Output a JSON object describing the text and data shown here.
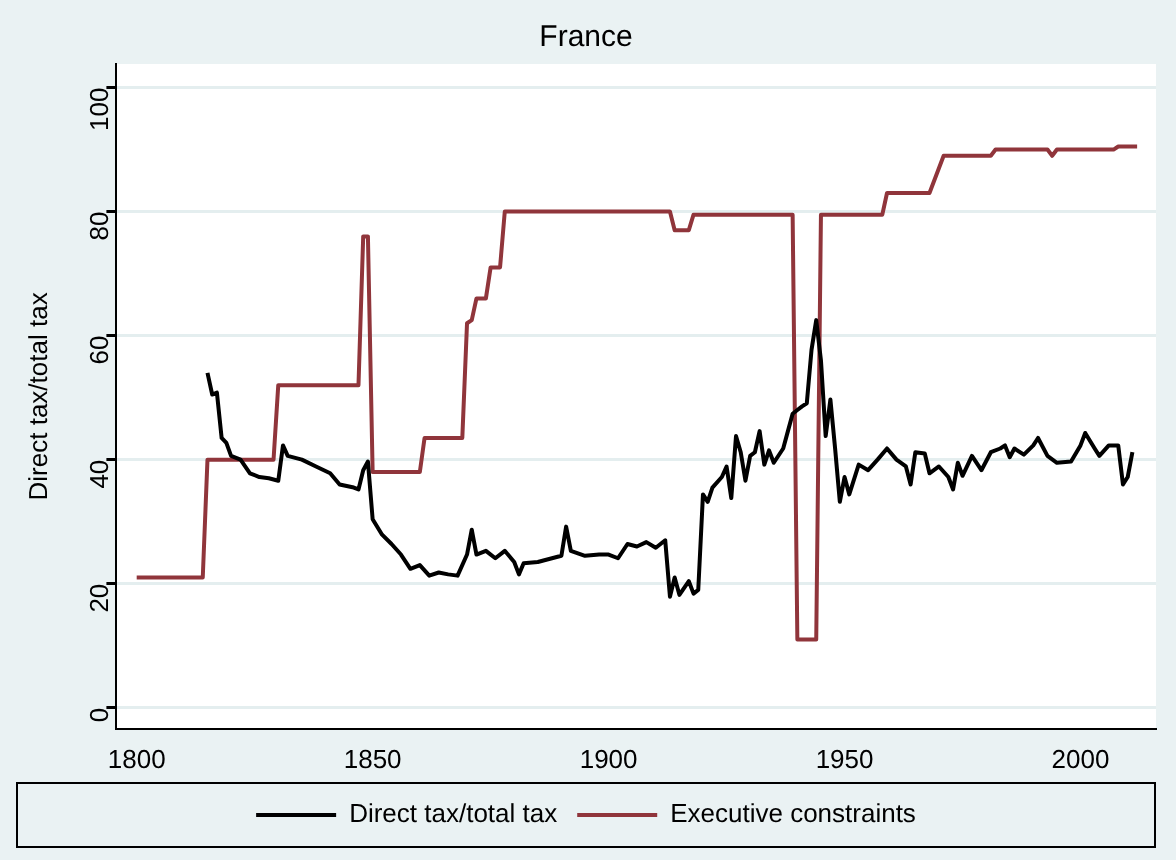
{
  "chart_data": {
    "type": "line",
    "title": "France",
    "ylabel": "Direct tax/total tax",
    "xlim": [
      1795.7,
      2016
    ],
    "xticks": [
      1800,
      1850,
      1900,
      1950,
      2000
    ],
    "ylim": [
      -3.4,
      103.8
    ],
    "yticks": [
      0,
      20,
      40,
      60,
      80,
      100
    ],
    "grid": "y",
    "legend": "bottom",
    "marker": "none",
    "line_style": "solid",
    "series": [
      {
        "name": "Direct tax/total tax",
        "color": "#000000",
        "x": [
          1815,
          1816,
          1817,
          1818,
          1819,
          1820,
          1822,
          1824,
          1826,
          1828,
          1830,
          1831,
          1832,
          1835,
          1838,
          1841,
          1843,
          1846,
          1847,
          1848,
          1849,
          1850,
          1852,
          1854,
          1856,
          1858,
          1860,
          1862,
          1864,
          1866,
          1868,
          1870,
          1871,
          1872,
          1874,
          1876,
          1878,
          1880,
          1881,
          1882,
          1885,
          1888,
          1890,
          1891,
          1892,
          1895,
          1898,
          1900,
          1902,
          1904,
          1906,
          1908,
          1910,
          1912,
          1913,
          1914,
          1915,
          1917,
          1918,
          1919,
          1920,
          1921,
          1922,
          1924,
          1925,
          1926,
          1927,
          1928,
          1929,
          1930,
          1931,
          1932,
          1933,
          1934,
          1935,
          1937,
          1938,
          1939,
          1940,
          1941,
          1942,
          1943,
          1944,
          1945,
          1946,
          1947,
          1948,
          1949,
          1950,
          1951,
          1953,
          1955,
          1957,
          1959,
          1961,
          1963,
          1964,
          1965,
          1967,
          1968,
          1970,
          1972,
          1973,
          1974,
          1975,
          1977,
          1979,
          1981,
          1983,
          1984,
          1985,
          1986,
          1988,
          1990,
          1991,
          1993,
          1995,
          1998,
          2000,
          2001,
          2003,
          2004,
          2006,
          2008,
          2009,
          2010,
          2011
        ],
        "values": [
          54,
          50.5,
          50.8,
          43.5,
          42.7,
          40.6,
          40,
          37.8,
          37.2,
          37,
          36.6,
          42.3,
          40.6,
          40,
          38.9,
          37.8,
          36,
          35.5,
          35.2,
          38.3,
          39.7,
          30.4,
          27.9,
          26.4,
          24.7,
          22.4,
          23,
          21.3,
          21.8,
          21.5,
          21.3,
          24.7,
          28.7,
          24.7,
          25.3,
          24.1,
          25.3,
          23.5,
          21.5,
          23.3,
          23.5,
          24.1,
          24.5,
          29.2,
          25.3,
          24.5,
          24.7,
          24.7,
          24.1,
          26.4,
          26,
          26.7,
          25.8,
          27,
          17.9,
          21,
          18.2,
          20.4,
          18.4,
          19,
          34.4,
          33.2,
          35.5,
          37.2,
          38.9,
          33.8,
          43.8,
          41.2,
          36.6,
          40.6,
          41.2,
          44.6,
          39.2,
          41.5,
          39.5,
          41.8,
          44.6,
          47.4,
          48,
          48.6,
          49.1,
          57.7,
          62.5,
          56,
          43.8,
          49.7,
          41.8,
          33.2,
          37.2,
          34.4,
          39.2,
          38.3,
          40,
          41.8,
          40,
          38.9,
          36,
          41.2,
          41,
          37.8,
          38.9,
          37.2,
          35.2,
          39.5,
          37.4,
          40.6,
          38.3,
          41.2,
          41.8,
          42.3,
          40.4,
          41.8,
          40.8,
          42.3,
          43.5,
          40.6,
          39.5,
          39.7,
          42.3,
          44.3,
          41.8,
          40.6,
          42.3,
          42.3,
          36,
          37.2,
          41.2
        ]
      },
      {
        "name": "Executive constraints",
        "color": "#90353b",
        "x": [
          1800,
          1814,
          1815,
          1829,
          1830,
          1847,
          1848,
          1849,
          1850,
          1860,
          1861,
          1869,
          1870,
          1871,
          1872,
          1874,
          1875,
          1877,
          1878,
          1913,
          1914,
          1917,
          1918,
          1939,
          1940,
          1944,
          1945,
          1958,
          1959,
          1968,
          1971,
          1981,
          1982,
          1993,
          1994,
          1995,
          2007,
          2008,
          2012
        ],
        "values": [
          21,
          21,
          40,
          40,
          52,
          52,
          76,
          76,
          38,
          38,
          43.5,
          43.5,
          62,
          62.5,
          66,
          66,
          71,
          71,
          80,
          80,
          77,
          77,
          79.5,
          79.5,
          11,
          11,
          79.5,
          79.5,
          83,
          83,
          89,
          89,
          90,
          90,
          89,
          90,
          90,
          90.5,
          90.5
        ]
      }
    ]
  }
}
